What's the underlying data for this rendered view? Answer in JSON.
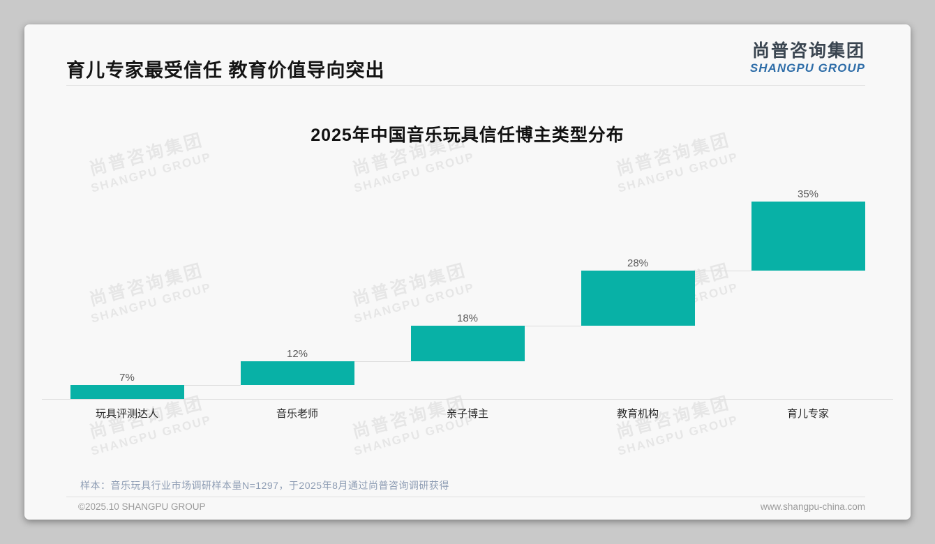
{
  "header": {
    "title": "育儿专家最受信任 教育价值导向突出"
  },
  "logo": {
    "name_cn": "尚普咨询集团",
    "name_en": "SHANGPU GROUP"
  },
  "watermark": {
    "line1": "尚普咨询集团",
    "line2": "SHANGPU GROUP"
  },
  "chart_data": {
    "type": "bar",
    "variant": "waterfall-step",
    "title": "2025年中国音乐玩具信任博主类型分布",
    "categories": [
      "玩具评测达人",
      "音乐老师",
      "亲子博主",
      "教育机构",
      "育儿专家"
    ],
    "values": [
      7,
      12,
      18,
      28,
      35
    ],
    "value_labels": [
      "7%",
      "12%",
      "18%",
      "28%",
      "35%"
    ],
    "unit": "%",
    "ylim": [
      0,
      100
    ],
    "grid": false,
    "legend": "none",
    "bar_color": "#08b1a6",
    "layout_hint": "cumulative step waterfall: each bar's base sits at the running total of previous bars; thin gray connector lines bridge the gaps at each step level"
  },
  "footer": {
    "sample_note": "样本：音乐玩具行业市场调研样本量N=1297，于2025年8月通过尚普咨询调研获得",
    "copyright": "©2025.10 SHANGPU GROUP",
    "website": "www.shangpu-china.com"
  },
  "colors": {
    "bar": "#08b1a6",
    "logo_cn": "#3a4550",
    "logo_en": "#2e6da8",
    "page_bg": "#c9c9c9",
    "card_bg": "#f8f8f8",
    "sample_note_text": "#8d9cb3",
    "muted_text": "#9a9a9a"
  }
}
